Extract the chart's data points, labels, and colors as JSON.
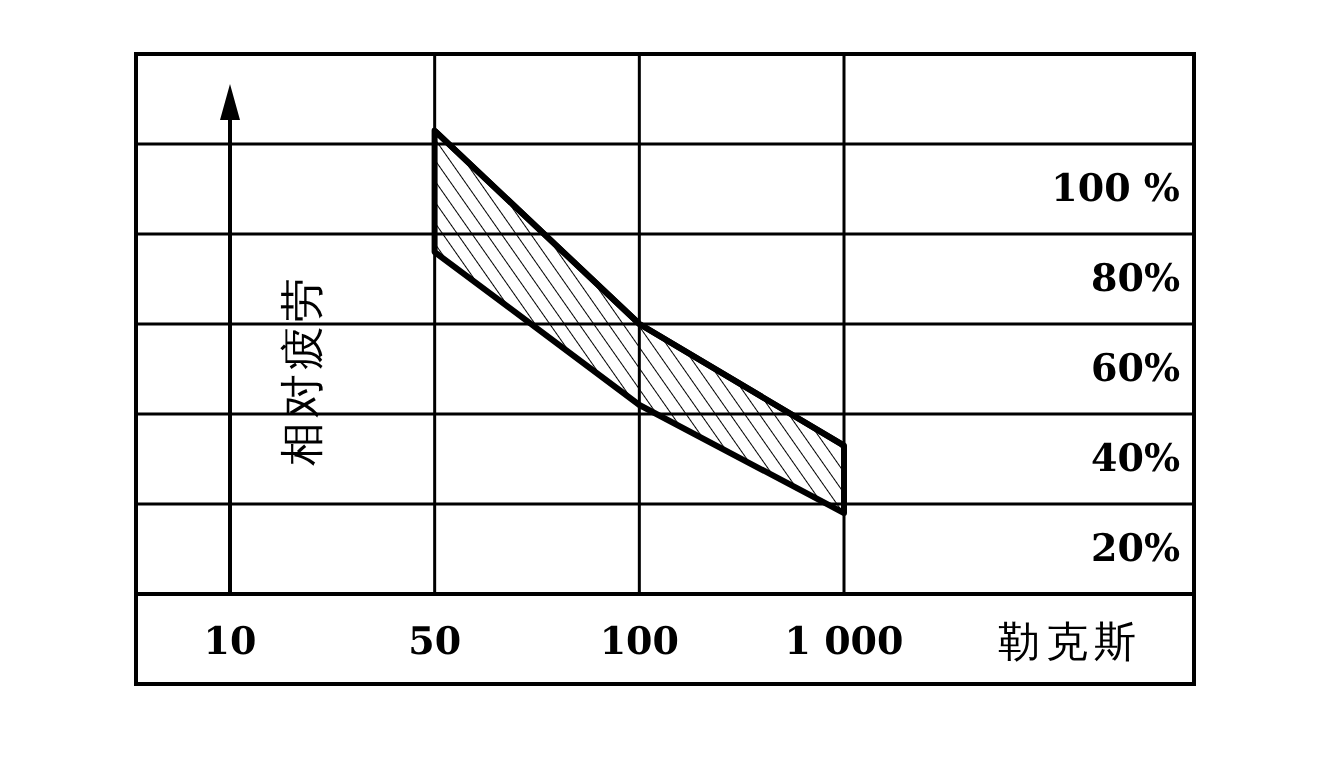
{
  "chart_data": {
    "type": "line",
    "ylabel": "相对疲劳",
    "xlabel": "勒克斯",
    "categories": [
      "10",
      "50",
      "100",
      "1 000"
    ],
    "series": [
      {
        "color": "#000000",
        "values": [
          null,
          113,
          70,
          43
        ],
        "lower": [
          null,
          86,
          52,
          28
        ],
        "upper": [
          null,
          113,
          70,
          43
        ]
      }
    ],
    "ylim": [
      10,
      130
    ],
    "yticks": [
      {
        "value": 20,
        "label": "20%"
      },
      {
        "value": 40,
        "label": "40%"
      },
      {
        "value": 60,
        "label": "60%"
      },
      {
        "value": 80,
        "label": "80%"
      },
      {
        "value": 100,
        "label": "100 %"
      }
    ],
    "grid": true
  }
}
